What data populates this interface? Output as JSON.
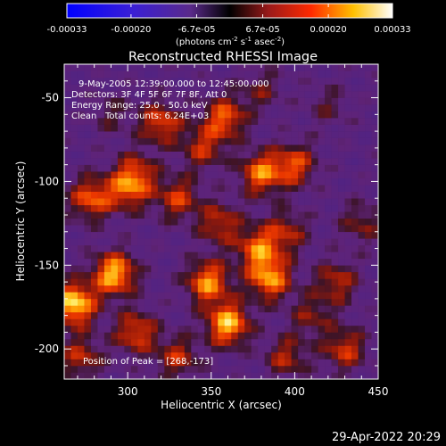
{
  "chart_data": {
    "type": "heatmap",
    "title": "Reconstructed RHESSI Image",
    "xlabel": "Heliocentric X (arcsec)",
    "ylabel": "Heliocentric Y (arcsec)",
    "xlim": [
      262,
      450
    ],
    "ylim": [
      -218,
      -30
    ],
    "x_ticks": [
      300,
      350,
      400,
      450
    ],
    "y_ticks": [
      -50,
      -100,
      -150,
      -200
    ],
    "colorbar": {
      "label_line1": "(photons cm",
      "sup1": "-2",
      "label_line2": " s",
      "sup2": "-1",
      "label_line3": " asec",
      "sup3": "-2",
      "label_end": ")",
      "range": [
        -0.00033,
        0.00033
      ],
      "tick_values": [
        -0.00033,
        -0.0002,
        -6.7e-05,
        6.7e-05,
        0.0002,
        0.00033
      ],
      "tick_labels": [
        "-0.00033",
        "-0.00020",
        "-6.7e-05",
        "6.7e-05",
        "0.00020",
        "0.00033"
      ],
      "colormap": "rhessi-blue-purple-red-yellow-white"
    },
    "annotations": [
      "9-May-2005 12:39:00.000 to 12:45:00.000",
      "Detectors: 3F 4F 5F 6F 7F 8F, Att 0",
      "Energy Range: 25.0 - 50.0 keV",
      "Clean",
      "Total counts: 6.24E+03"
    ],
    "peak_label": "Position of Peak = [268,-173]",
    "peak": [
      268,
      -173
    ],
    "blobs": [
      {
        "x": 268,
        "y": -173,
        "v": 0.00033
      },
      {
        "x": 292,
        "y": -155,
        "v": 0.0003
      },
      {
        "x": 278,
        "y": -110,
        "v": 0.00022
      },
      {
        "x": 300,
        "y": -105,
        "v": 0.00018
      },
      {
        "x": 305,
        "y": -95,
        "v": 0.00016
      },
      {
        "x": 320,
        "y": -65,
        "v": 0.0002
      },
      {
        "x": 358,
        "y": -62,
        "v": 0.00022
      },
      {
        "x": 345,
        "y": -80,
        "v": 0.00016
      },
      {
        "x": 380,
        "y": -95,
        "v": 0.00024
      },
      {
        "x": 400,
        "y": -90,
        "v": 0.0002
      },
      {
        "x": 330,
        "y": -110,
        "v": 0.00018
      },
      {
        "x": 355,
        "y": -125,
        "v": 0.00017
      },
      {
        "x": 395,
        "y": -130,
        "v": 0.00015
      },
      {
        "x": 425,
        "y": -160,
        "v": 0.00016
      },
      {
        "x": 305,
        "y": -190,
        "v": 0.0002
      },
      {
        "x": 348,
        "y": -160,
        "v": 0.00026
      },
      {
        "x": 360,
        "y": -185,
        "v": 0.0003
      },
      {
        "x": 385,
        "y": -158,
        "v": 0.00026
      },
      {
        "x": 378,
        "y": -140,
        "v": 0.00022
      },
      {
        "x": 395,
        "y": -205,
        "v": 0.00015
      },
      {
        "x": 430,
        "y": -200,
        "v": 0.00018
      },
      {
        "x": 272,
        "y": -205,
        "v": 0.00016
      },
      {
        "x": 440,
        "y": -125,
        "v": 0.00012
      },
      {
        "x": 330,
        "y": -205,
        "v": 0.00016
      },
      {
        "x": 410,
        "y": -180,
        "v": 0.00012
      },
      {
        "x": 290,
        "y": -60,
        "v": 8e-05
      },
      {
        "x": 380,
        "y": -45,
        "v": 0.0001
      },
      {
        "x": 420,
        "y": -55,
        "v": 8e-05
      }
    ]
  },
  "timestamp": "29-Apr-2022 20:29"
}
